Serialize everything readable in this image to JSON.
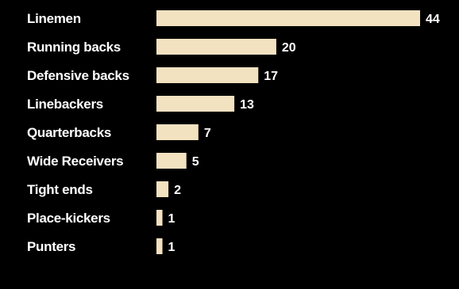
{
  "chart_data": {
    "type": "bar",
    "orientation": "horizontal",
    "categories": [
      "Linemen",
      "Running backs",
      "Defensive backs",
      "Linebackers",
      "Quarterbacks",
      "Wide Receivers",
      "Tight ends",
      "Place-kickers",
      "Punters"
    ],
    "values": [
      44,
      20,
      17,
      13,
      7,
      5,
      2,
      1,
      1
    ],
    "title": "",
    "xlabel": "",
    "ylabel": "",
    "xlim": [
      0,
      44
    ],
    "grid": false,
    "legend": "none",
    "colors": {
      "background": "#000000",
      "bar": "#f3e2c0",
      "text": "#ffffff"
    }
  }
}
